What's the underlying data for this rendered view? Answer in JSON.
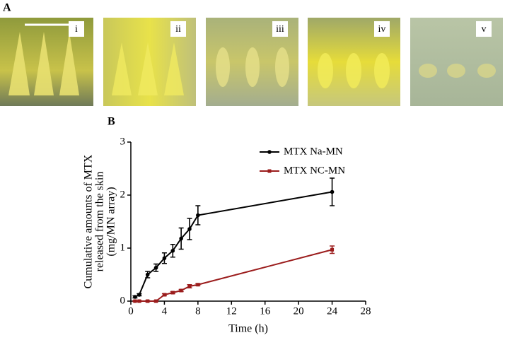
{
  "panel_a": {
    "label": "A",
    "images": [
      "i",
      "ii",
      "iii",
      "iv",
      "v"
    ]
  },
  "chart_data": {
    "type": "line",
    "panel_label": "B",
    "xlabel": "Time (h)",
    "ylabel": [
      "Cumulative amounts of MTX",
      "released from the skin",
      "(mg/MN array)"
    ],
    "x": [
      0.5,
      1,
      2,
      3,
      4,
      5,
      6,
      7,
      8,
      24
    ],
    "series": [
      {
        "name": "MTX Na-MN",
        "color": "#000000",
        "marker": "circle",
        "values": [
          0.08,
          0.12,
          0.5,
          0.63,
          0.81,
          0.95,
          1.18,
          1.36,
          1.62,
          2.06
        ],
        "errors": [
          0.02,
          0.02,
          0.06,
          0.07,
          0.1,
          0.12,
          0.2,
          0.2,
          0.18,
          0.26
        ]
      },
      {
        "name": "MTX NC-MN",
        "color": "#9b1c1c",
        "marker": "square",
        "values": [
          0,
          0,
          0,
          0,
          0.12,
          0.16,
          0.2,
          0.28,
          0.31,
          0.97
        ],
        "errors": [
          0.01,
          0.01,
          0.01,
          0.01,
          0.02,
          0.02,
          0.02,
          0.03,
          0.02,
          0.07
        ]
      }
    ],
    "xlim": [
      0,
      28
    ],
    "xticks": [
      0,
      4,
      8,
      12,
      16,
      20,
      24,
      28
    ],
    "ylim": [
      0,
      3
    ],
    "yticks": [
      0,
      1,
      2,
      3
    ],
    "legend": "upper right"
  }
}
